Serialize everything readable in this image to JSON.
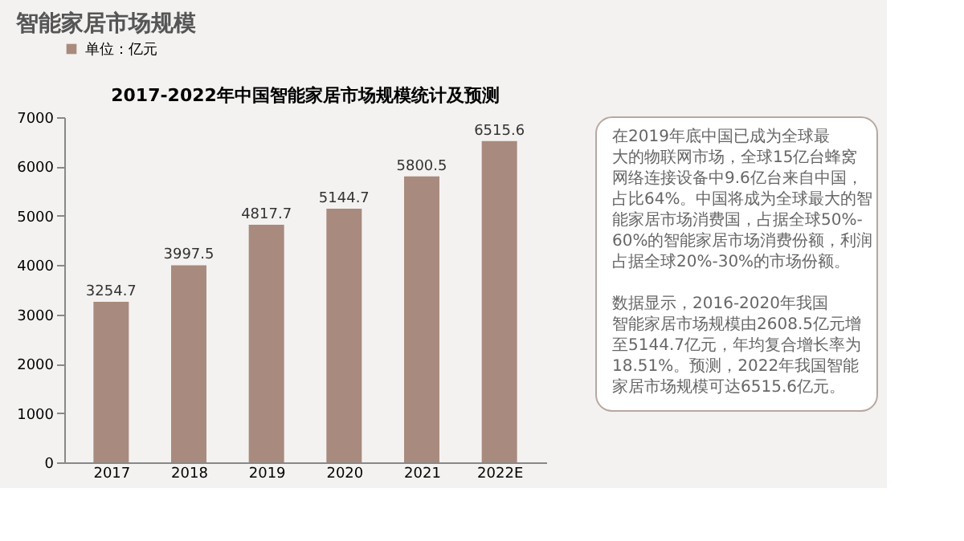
{
  "chart_data": {
    "type": "bar",
    "title": "智能家居市场规模",
    "subtitle": "2017-2022年中国智能家居市场规模统计及预测",
    "categories": [
      "2017",
      "2018",
      "2019",
      "2020",
      "2021",
      "2022E"
    ],
    "series": [
      {
        "name": "单位：亿元",
        "color": "#a88b7e",
        "values": [
          3254.7,
          3997.5,
          4817.7,
          5144.7,
          5800.5,
          6515.6
        ]
      }
    ],
    "ylim": [
      0,
      7000
    ],
    "yticks": [
      0,
      1000,
      2000,
      3000,
      4000,
      5000,
      6000,
      7000
    ],
    "grid": false,
    "legend": "top",
    "data_labels": true,
    "annotations": [
      "在2019年底中国已成为全球最大的物联网市场，全球15亿台蜂窝网络连接设备中9.6亿台来自中国，占比64%。中国将成为全球最大的智能家居市场消费国，占据全球50%-60%的智能家居市场消费份额，利润占据全球20%-30%的市场份额。",
      "数据显示，2016-2020年我国智能家居市场规模由2608.5亿元增至5144.7亿元，年均复合增长率为18.51%。预测，2022年我国智能家居市场规模可达6515.6亿元。"
    ]
  }
}
